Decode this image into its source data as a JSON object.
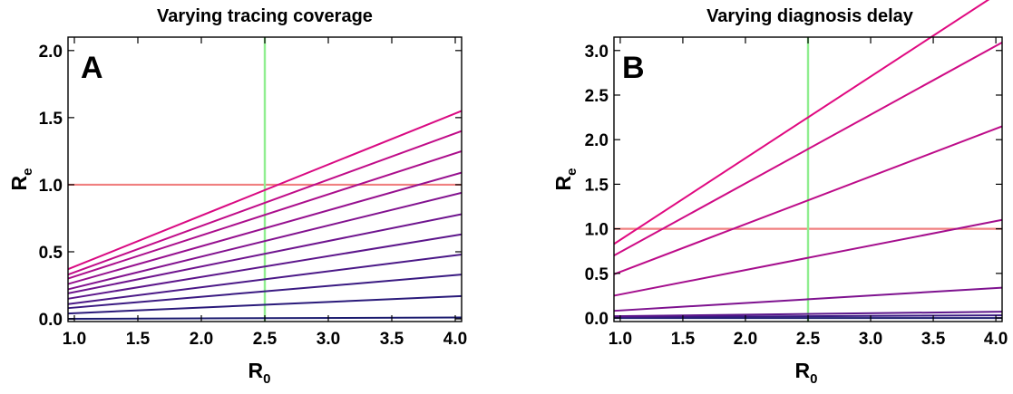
{
  "chart_data": [
    {
      "type": "line",
      "title": "Varying tracing coverage",
      "panel_label": "A",
      "xlabel": "R",
      "xlabel_sub": "0",
      "ylabel": "R",
      "ylabel_sub": "e",
      "xlim": [
        0.95,
        4.05
      ],
      "ylim": [
        -0.02,
        2.1
      ],
      "xticks": [
        "1.0",
        "1.5",
        "2.0",
        "2.5",
        "3.0",
        "3.5",
        "4.0"
      ],
      "yticks": [
        "0.0",
        "0.5",
        "1.0",
        "1.5",
        "2.0"
      ],
      "reference_lines": {
        "horizontal_y": 1.0,
        "vertical_x": 2.5,
        "horizontal_color": "#f08080",
        "vertical_color": "#90ee90"
      },
      "series": [
        {
          "color": "#1a1a6e",
          "x": [
            0.95,
            4.05
          ],
          "y": [
            0.0,
            0.01
          ]
        },
        {
          "color": "#2a1a7a",
          "x": [
            0.95,
            4.05
          ],
          "y": [
            0.04,
            0.17
          ]
        },
        {
          "color": "#3a1a82",
          "x": [
            0.95,
            4.05
          ],
          "y": [
            0.08,
            0.33
          ]
        },
        {
          "color": "#4a1887",
          "x": [
            0.95,
            4.05
          ],
          "y": [
            0.11,
            0.48
          ]
        },
        {
          "color": "#5c168b",
          "x": [
            0.95,
            4.05
          ],
          "y": [
            0.15,
            0.63
          ]
        },
        {
          "color": "#6e148e",
          "x": [
            0.95,
            4.05
          ],
          "y": [
            0.19,
            0.78
          ]
        },
        {
          "color": "#82128f",
          "x": [
            0.95,
            4.05
          ],
          "y": [
            0.22,
            0.94
          ]
        },
        {
          "color": "#96108f",
          "x": [
            0.95,
            4.05
          ],
          "y": [
            0.26,
            1.09
          ]
        },
        {
          "color": "#ab0e8c",
          "x": [
            0.95,
            4.05
          ],
          "y": [
            0.3,
            1.25
          ]
        },
        {
          "color": "#c00c88",
          "x": [
            0.95,
            4.05
          ],
          "y": [
            0.33,
            1.4
          ]
        },
        {
          "color": "#d90a82",
          "x": [
            0.95,
            4.05
          ],
          "y": [
            0.37,
            1.55
          ]
        }
      ]
    },
    {
      "type": "line",
      "title": "Varying diagnosis delay",
      "panel_label": "B",
      "xlabel": "R",
      "xlabel_sub": "0",
      "ylabel": "R",
      "ylabel_sub": "e",
      "xlim": [
        0.95,
        4.05
      ],
      "ylim": [
        -0.04,
        3.15
      ],
      "xticks": [
        "1.0",
        "1.5",
        "2.0",
        "2.5",
        "3.0",
        "3.5",
        "4.0"
      ],
      "yticks": [
        "0.0",
        "0.5",
        "1.0",
        "1.5",
        "2.0",
        "2.5",
        "3.0"
      ],
      "reference_lines": {
        "horizontal_y": 1.0,
        "vertical_x": 2.5,
        "horizontal_color": "#f08080",
        "vertical_color": "#90ee90"
      },
      "series": [
        {
          "color": "#1a1a6e",
          "x": [
            0.95,
            4.05
          ],
          "y": [
            0.0,
            0.0
          ]
        },
        {
          "color": "#3a1a82",
          "x": [
            0.95,
            4.05
          ],
          "y": [
            0.01,
            0.03
          ]
        },
        {
          "color": "#5c168b",
          "x": [
            0.95,
            4.05
          ],
          "y": [
            0.02,
            0.07
          ]
        },
        {
          "color": "#7e128f",
          "x": [
            0.95,
            4.05
          ],
          "y": [
            0.08,
            0.34
          ]
        },
        {
          "color": "#a40e8d",
          "x": [
            0.95,
            4.05
          ],
          "y": [
            0.25,
            1.1
          ]
        },
        {
          "color": "#bd0c89",
          "x": [
            0.95,
            4.05
          ],
          "y": [
            0.49,
            2.15
          ]
        },
        {
          "color": "#cf0b85",
          "x": [
            0.95,
            4.05
          ],
          "y": [
            0.7,
            3.09
          ]
        },
        {
          "color": "#e00980",
          "x": [
            0.95,
            4.05
          ],
          "y": [
            0.83,
            3.67
          ]
        }
      ]
    }
  ]
}
